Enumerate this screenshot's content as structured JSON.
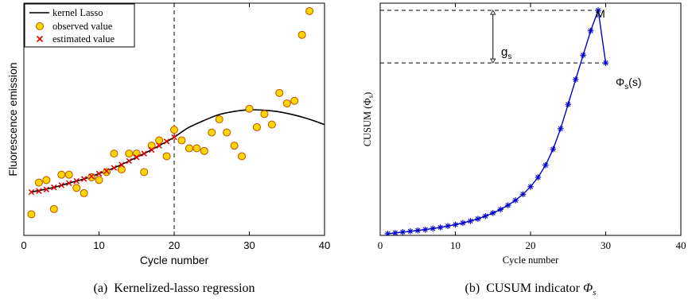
{
  "chart_data": [
    {
      "type": "scatter",
      "xlabel": "Cycle number",
      "ylabel": "Fluorescence emission",
      "xlim": [
        0,
        40
      ],
      "ylim": [
        0,
        44
      ],
      "x_ticks": [
        "0",
        "10",
        "20",
        "30",
        "40"
      ],
      "grid": false,
      "legend_position": "top-left",
      "caption": "(a)  Kernelized-lasso regression",
      "vline_x": 20,
      "series": [
        {
          "name": "kernel Lasso",
          "kind": "line",
          "color": "#000000",
          "x": [
            1,
            2,
            4,
            6,
            8,
            10,
            12,
            14,
            16,
            18,
            20,
            21,
            22,
            24,
            26,
            28,
            30,
            32,
            34,
            36,
            38,
            40
          ],
          "y": [
            8.2,
            8.5,
            9.1,
            9.9,
            10.7,
            11.7,
            12.8,
            14.1,
            15.5,
            17.0,
            18.6,
            19.6,
            20.5,
            21.8,
            22.9,
            23.5,
            23.8,
            23.7,
            23.4,
            22.8,
            22.0,
            21.0
          ]
        },
        {
          "name": "observed value",
          "kind": "marker-circle",
          "color": "#ffd700",
          "edge": "#c05000",
          "x": [
            1,
            2,
            3,
            4,
            5,
            6,
            7,
            8,
            9,
            10,
            11,
            12,
            13,
            14,
            15,
            16,
            17,
            18,
            19,
            20,
            21,
            22,
            23,
            24,
            25,
            26,
            27,
            28,
            29,
            30,
            31,
            32,
            33,
            34,
            35,
            36,
            37,
            38
          ],
          "y": [
            4.0,
            10.0,
            10.5,
            5.0,
            11.5,
            11.5,
            9.0,
            8.0,
            11.0,
            10.5,
            12.0,
            15.5,
            12.5,
            15.5,
            15.5,
            12.0,
            17.0,
            18.0,
            15.0,
            20.0,
            18.0,
            16.5,
            16.5,
            16.0,
            19.5,
            22.0,
            19.5,
            17.0,
            15.0,
            24.0,
            20.5,
            23.0,
            21.0,
            27.0,
            25.0,
            25.5,
            38.0,
            42.5
          ]
        },
        {
          "name": "estimated value",
          "kind": "marker-x",
          "color": "#e00000",
          "x": [
            1,
            2,
            3,
            4,
            5,
            6,
            7,
            8,
            9,
            10,
            11,
            12,
            13,
            14,
            15,
            16,
            17,
            18,
            19,
            20
          ],
          "y": [
            8.2,
            8.4,
            8.7,
            9.1,
            9.5,
            9.9,
            10.3,
            10.7,
            11.2,
            11.7,
            12.2,
            12.8,
            13.4,
            14.1,
            14.8,
            15.5,
            16.2,
            17.0,
            17.8,
            18.6
          ]
        }
      ]
    },
    {
      "type": "line",
      "xlabel": "Cycle number",
      "ylabel": "CUSUM (Φ_s)",
      "xlim": [
        0,
        40
      ],
      "ylim": [
        0,
        42
      ],
      "x_ticks": [
        "0",
        "10",
        "20",
        "30",
        "40"
      ],
      "grid": false,
      "caption": "(b)  CUSUM indicator Φ_s",
      "series": [
        {
          "name": "",
          "kind": "line-star",
          "color": "#0000cc",
          "x": [
            1,
            2,
            3,
            4,
            5,
            6,
            7,
            8,
            9,
            10,
            11,
            12,
            13,
            14,
            15,
            16,
            17,
            18,
            19,
            20,
            21,
            22,
            23,
            24,
            25,
            26,
            27,
            28,
            29,
            30
          ],
          "y": [
            0.3,
            0.45,
            0.6,
            0.75,
            0.9,
            1.05,
            1.25,
            1.45,
            1.7,
            1.95,
            2.25,
            2.6,
            3.0,
            3.5,
            4.05,
            4.7,
            5.45,
            6.35,
            7.45,
            8.8,
            10.5,
            12.7,
            15.6,
            19.3,
            23.7,
            28.2,
            32.6,
            37.0,
            40.7,
            31.2
          ]
        }
      ],
      "annotations": {
        "max_label": "M",
        "gap_label": "g_s",
        "end_label": "Φ_s(s)",
        "gap_x": 15,
        "gap_top": 40.7,
        "gap_bottom": 31.2
      }
    }
  ],
  "captions": {
    "a_prefix": "(a)",
    "a_text": "Kernelized-lasso regression",
    "b_prefix": "(b)",
    "b_text": "CUSUM indicator "
  }
}
